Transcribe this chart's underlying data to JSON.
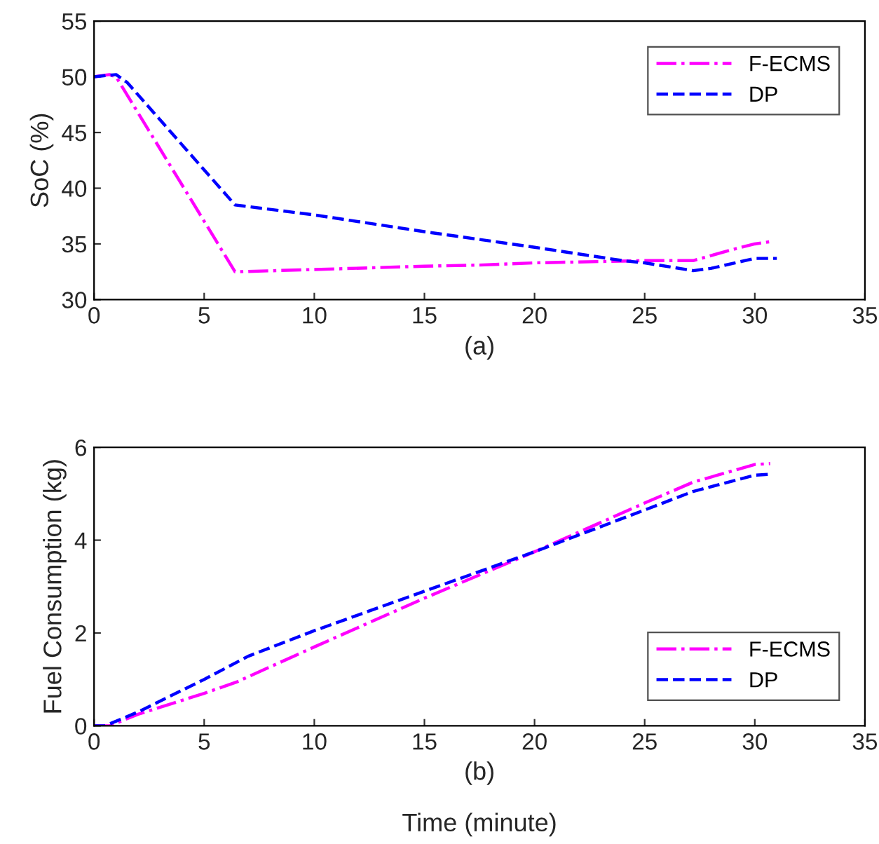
{
  "chart_data": [
    {
      "type": "line",
      "xlabel": "(a)",
      "ylabel": "SoC (%)",
      "xlim": [
        0,
        35
      ],
      "xticks": [
        0,
        5,
        10,
        15,
        20,
        25,
        30,
        35
      ],
      "ylim": [
        30,
        55
      ],
      "yticks": [
        30,
        35,
        40,
        45,
        50,
        55
      ],
      "grid": false,
      "legend": "top right",
      "series": [
        {
          "name": "F-ECMS",
          "color": "#ff00ff",
          "line_style": "dashdot",
          "x": [
            0,
            0.7,
            1,
            6.4,
            10,
            15,
            17.5,
            20,
            25,
            27.2,
            29,
            30,
            30.7
          ],
          "values": [
            50,
            50.2,
            50,
            32.5,
            32.7,
            33,
            33.1,
            33.3,
            33.5,
            33.5,
            34.5,
            35,
            35.2
          ]
        },
        {
          "name": "DP",
          "color": "#0000ff",
          "line_style": "dashed",
          "x": [
            0,
            1,
            1.5,
            6.4,
            10,
            15,
            20,
            24,
            25,
            27.2,
            28,
            30,
            31
          ],
          "values": [
            50,
            50.2,
            49.5,
            38.5,
            37.6,
            36.1,
            34.7,
            33.5,
            33.3,
            32.6,
            32.8,
            33.7,
            33.7
          ]
        }
      ]
    },
    {
      "type": "line",
      "xlabel": "Time (minute)",
      "ylabel": "Fuel Consumption (kg)",
      "annotations": [
        "(b)"
      ],
      "xlim": [
        0,
        35
      ],
      "xticks": [
        0,
        5,
        10,
        15,
        20,
        25,
        30,
        35
      ],
      "ylim": [
        0,
        6
      ],
      "yticks": [
        0,
        2,
        4,
        6
      ],
      "grid": false,
      "legend": "bottom right",
      "series": [
        {
          "name": "F-ECMS",
          "color": "#ff00ff",
          "line_style": "dashdot",
          "x": [
            0,
            0.7,
            2,
            5,
            6.5,
            10,
            15,
            20,
            25,
            27.2,
            30,
            30.7
          ],
          "values": [
            0,
            0,
            0.25,
            0.7,
            0.95,
            1.7,
            2.75,
            3.75,
            4.8,
            5.25,
            5.63,
            5.65
          ]
        },
        {
          "name": "DP",
          "color": "#0000ff",
          "line_style": "dashed",
          "x": [
            0,
            0.5,
            2,
            5,
            7,
            10,
            15,
            20,
            25,
            27.2,
            30,
            30.7
          ],
          "values": [
            0,
            0,
            0.3,
            1.0,
            1.5,
            2.05,
            2.9,
            3.75,
            4.65,
            5.05,
            5.4,
            5.42
          ]
        }
      ]
    }
  ]
}
